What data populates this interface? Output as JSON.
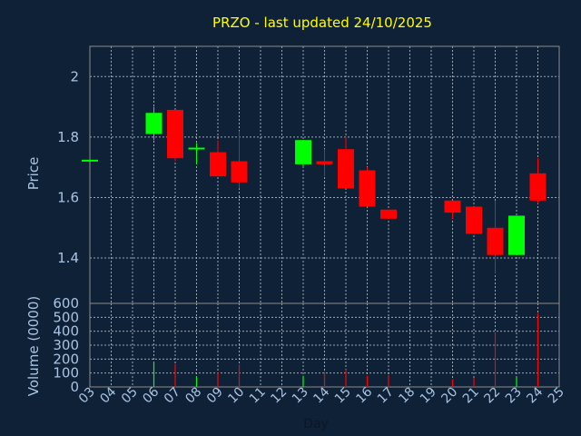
{
  "chart_data": [
    {
      "type": "candlestick",
      "title": "PRZO - last updated 24/10/2025",
      "ylabel": "Price",
      "ylim": [
        1.25,
        2.1
      ],
      "yticks": [
        1.4,
        1.6,
        1.8,
        2.0
      ],
      "ytick_labels": [
        "1.4",
        "1.6",
        "1.8",
        "2"
      ],
      "grid": true,
      "colors": {
        "up": "#00ff00",
        "down": "#ff0000"
      },
      "candles": [
        {
          "day": 3,
          "open": 1.72,
          "high": 1.725,
          "low": 1.715,
          "close": 1.725
        },
        {
          "day": 6,
          "open": 1.81,
          "high": 1.9,
          "low": 1.79,
          "close": 1.88
        },
        {
          "day": 7,
          "open": 1.89,
          "high": 1.89,
          "low": 1.72,
          "close": 1.73
        },
        {
          "day": 8,
          "open": 1.76,
          "high": 1.78,
          "low": 1.71,
          "close": 1.765
        },
        {
          "day": 9,
          "open": 1.75,
          "high": 1.79,
          "low": 1.67,
          "close": 1.67
        },
        {
          "day": 10,
          "open": 1.72,
          "high": 1.82,
          "low": 1.63,
          "close": 1.65
        },
        {
          "day": 13,
          "open": 1.71,
          "high": 1.79,
          "low": 1.7,
          "close": 1.79
        },
        {
          "day": 14,
          "open": 1.72,
          "high": 1.76,
          "low": 1.67,
          "close": 1.71
        },
        {
          "day": 15,
          "open": 1.76,
          "high": 1.8,
          "low": 1.63,
          "close": 1.63
        },
        {
          "day": 16,
          "open": 1.69,
          "high": 1.7,
          "low": 1.57,
          "close": 1.57
        },
        {
          "day": 17,
          "open": 1.56,
          "high": 1.56,
          "low": 1.53,
          "close": 1.53
        },
        {
          "day": 20,
          "open": 1.59,
          "high": 1.59,
          "low": 1.53,
          "close": 1.55
        },
        {
          "day": 21,
          "open": 1.57,
          "high": 1.57,
          "low": 1.48,
          "close": 1.48
        },
        {
          "day": 22,
          "open": 1.5,
          "high": 1.59,
          "low": 1.35,
          "close": 1.41
        },
        {
          "day": 23,
          "open": 1.41,
          "high": 1.54,
          "low": 1.41,
          "close": 1.54
        },
        {
          "day": 24,
          "open": 1.68,
          "high": 1.73,
          "low": 1.58,
          "close": 1.59
        }
      ]
    },
    {
      "type": "bar",
      "ylabel": "Volume (0000)",
      "xlabel": "Day",
      "ylim": [
        0,
        600
      ],
      "yticks": [
        0,
        100,
        200,
        300,
        400,
        500,
        600
      ],
      "xlim": [
        3,
        25
      ],
      "categories": [
        "03",
        "04",
        "05",
        "06",
        "07",
        "08",
        "09",
        "10",
        "11",
        "12",
        "13",
        "14",
        "15",
        "16",
        "17",
        "18",
        "19",
        "20",
        "21",
        "22",
        "23",
        "24",
        "25"
      ],
      "volume": [
        {
          "day": 3,
          "value": 5,
          "up": true
        },
        {
          "day": 6,
          "value": 180,
          "up": true
        },
        {
          "day": 7,
          "value": 165,
          "up": false
        },
        {
          "day": 8,
          "value": 75,
          "up": true
        },
        {
          "day": 9,
          "value": 105,
          "up": false
        },
        {
          "day": 10,
          "value": 160,
          "up": false
        },
        {
          "day": 13,
          "value": 80,
          "up": true
        },
        {
          "day": 14,
          "value": 110,
          "up": false
        },
        {
          "day": 15,
          "value": 125,
          "up": false
        },
        {
          "day": 16,
          "value": 80,
          "up": false
        },
        {
          "day": 17,
          "value": 85,
          "up": false
        },
        {
          "day": 20,
          "value": 55,
          "up": false
        },
        {
          "day": 21,
          "value": 65,
          "up": false
        },
        {
          "day": 22,
          "value": 390,
          "up": false
        },
        {
          "day": 23,
          "value": 70,
          "up": true
        },
        {
          "day": 24,
          "value": 530,
          "up": false
        }
      ]
    }
  ]
}
